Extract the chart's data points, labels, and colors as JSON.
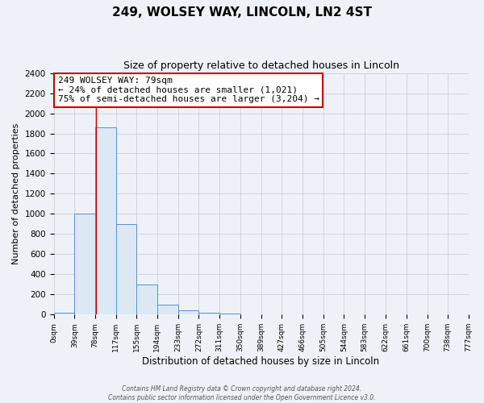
{
  "title": "249, WOLSEY WAY, LINCOLN, LN2 4ST",
  "subtitle": "Size of property relative to detached houses in Lincoln",
  "xlabel": "Distribution of detached houses by size in Lincoln",
  "ylabel": "Number of detached properties",
  "bin_edges": [
    0,
    39,
    78,
    117,
    155,
    194,
    233,
    272,
    311,
    350,
    389,
    427,
    466,
    505,
    544,
    583,
    622,
    661,
    700,
    738,
    777
  ],
  "bin_counts": [
    20,
    1000,
    1860,
    900,
    300,
    100,
    45,
    20,
    10,
    0,
    0,
    0,
    0,
    0,
    0,
    0,
    0,
    0,
    0,
    0
  ],
  "bar_facecolor": "#dce9f5",
  "bar_edgecolor": "#5b8fc9",
  "grid_color": "#c8d0dc",
  "background_color": "#eef2f8",
  "vline_x": 79,
  "vline_color": "#cc0000",
  "annotation_line1": "249 WOLSEY WAY: 79sqm",
  "annotation_line2": "← 24% of detached houses are smaller (1,021)",
  "annotation_line3": "75% of semi-detached houses are larger (3,204) →",
  "annotation_box_edgecolor": "#cc0000",
  "annotation_box_facecolor": "#ffffff",
  "ylim": [
    0,
    2400
  ],
  "yticks": [
    0,
    200,
    400,
    600,
    800,
    1000,
    1200,
    1400,
    1600,
    1800,
    2000,
    2200,
    2400
  ],
  "tick_labels": [
    "0sqm",
    "39sqm",
    "78sqm",
    "117sqm",
    "155sqm",
    "194sqm",
    "233sqm",
    "272sqm",
    "311sqm",
    "350sqm",
    "389sqm",
    "427sqm",
    "466sqm",
    "505sqm",
    "544sqm",
    "583sqm",
    "622sqm",
    "661sqm",
    "700sqm",
    "738sqm",
    "777sqm"
  ],
  "footer_line1": "Contains HM Land Registry data © Crown copyright and database right 2024.",
  "footer_line2": "Contains public sector information licensed under the Open Government Licence v3.0."
}
